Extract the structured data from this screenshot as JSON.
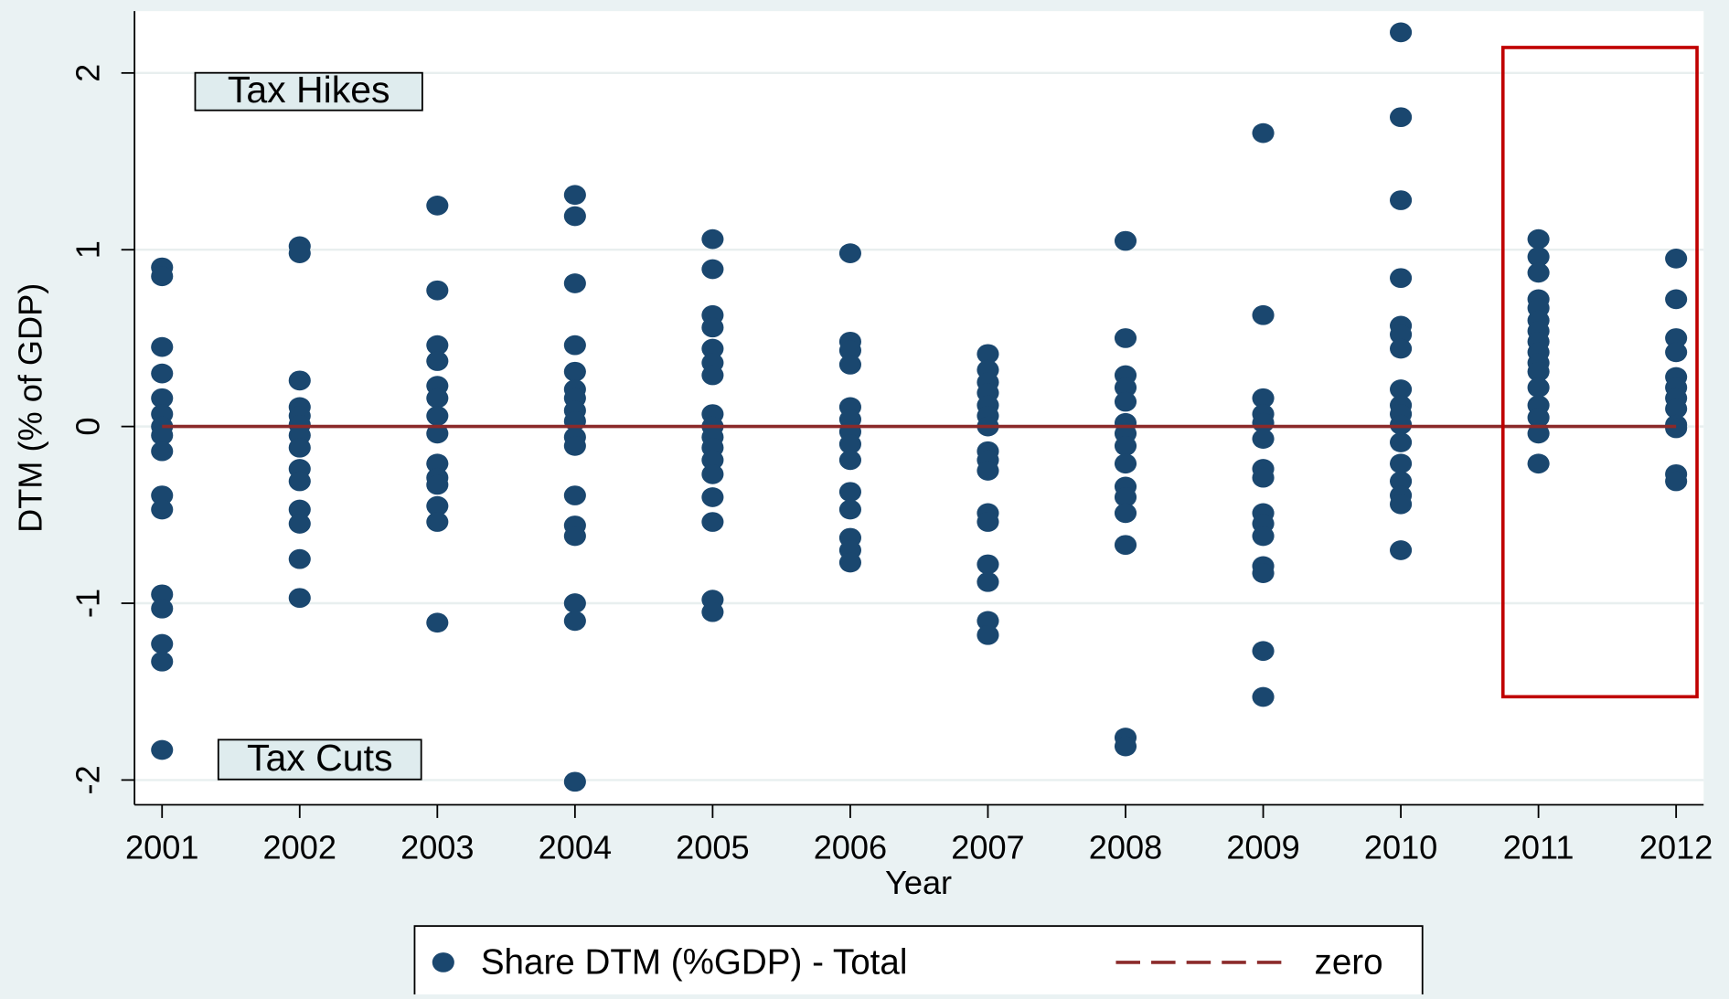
{
  "chart_data": {
    "type": "scatter",
    "x_label": "Year",
    "y_label": "DTM (% of GDP)",
    "annotations": [
      "Tax Hikes",
      "Tax Cuts"
    ],
    "xlim": [
      2000.8,
      2012.2
    ],
    "xticks": [
      2001,
      2002,
      2003,
      2004,
      2005,
      2006,
      2007,
      2008,
      2009,
      2010,
      2011,
      2012
    ],
    "ylim": [
      -2.14,
      2.35
    ],
    "yticks": [
      -2,
      -1,
      0,
      1,
      2
    ],
    "grid": true,
    "legend": "bottom",
    "series": [
      {
        "name": "Share DTM (%GDP) - Total",
        "color": "#1a476f",
        "type": "scatter",
        "x": [
          2001,
          2001,
          2001,
          2001,
          2001,
          2001,
          2001,
          2001,
          2001,
          2001,
          2001,
          2001,
          2001,
          2001,
          2001,
          2001,
          2002,
          2002,
          2002,
          2002,
          2002,
          2002,
          2002,
          2002,
          2002,
          2002,
          2002,
          2002,
          2002,
          2002,
          2003,
          2003,
          2003,
          2003,
          2003,
          2003,
          2003,
          2003,
          2003,
          2003,
          2003,
          2003,
          2003,
          2003,
          2004,
          2004,
          2004,
          2004,
          2004,
          2004,
          2004,
          2004,
          2004,
          2004,
          2004,
          2004,
          2004,
          2004,
          2004,
          2004,
          2004,
          2005,
          2005,
          2005,
          2005,
          2005,
          2005,
          2005,
          2005,
          2005,
          2005,
          2005,
          2005,
          2005,
          2005,
          2005,
          2005,
          2005,
          2006,
          2006,
          2006,
          2006,
          2006,
          2006,
          2006,
          2006,
          2006,
          2006,
          2006,
          2006,
          2006,
          2006,
          2007,
          2007,
          2007,
          2007,
          2007,
          2007,
          2007,
          2007,
          2007,
          2007,
          2007,
          2007,
          2007,
          2007,
          2007,
          2007,
          2008,
          2008,
          2008,
          2008,
          2008,
          2008,
          2008,
          2008,
          2008,
          2008,
          2008,
          2008,
          2008,
          2008,
          2008,
          2009,
          2009,
          2009,
          2009,
          2009,
          2009,
          2009,
          2009,
          2009,
          2009,
          2009,
          2009,
          2009,
          2009,
          2009,
          2010,
          2010,
          2010,
          2010,
          2010,
          2010,
          2010,
          2010,
          2010,
          2010,
          2010,
          2010,
          2010,
          2010,
          2010,
          2010,
          2010,
          2011,
          2011,
          2011,
          2011,
          2011,
          2011,
          2011,
          2011,
          2011,
          2011,
          2011,
          2011,
          2011,
          2011,
          2011,
          2011,
          2012,
          2012,
          2012,
          2012,
          2012,
          2012,
          2012,
          2012,
          2012,
          2012,
          2012,
          2012
        ],
        "values": [
          0.9,
          0.85,
          0.45,
          0.3,
          0.16,
          0.07,
          0,
          -0.05,
          -0.14,
          -0.39,
          -0.47,
          -0.95,
          -1.03,
          -1.23,
          -1.33,
          -1.83,
          1.02,
          0.98,
          0.26,
          0.11,
          0.06,
          0.01,
          -0.05,
          -0.12,
          -0.24,
          -0.31,
          -0.47,
          -0.55,
          -0.75,
          -0.97,
          1.25,
          0.77,
          0.46,
          0.37,
          0.23,
          0.16,
          0.06,
          -0.04,
          -0.21,
          -0.29,
          -0.33,
          -0.45,
          -0.54,
          -1.11,
          1.31,
          1.19,
          0.81,
          0.46,
          0.31,
          0.21,
          0.16,
          0.09,
          0.03,
          -0.06,
          -0.11,
          -0.39,
          -0.56,
          -0.62,
          -1.0,
          -1.1,
          -2.01,
          1.06,
          0.89,
          0.63,
          0.56,
          0.44,
          0.36,
          0.29,
          0.07,
          0,
          -0.06,
          -0.12,
          -0.19,
          -0.27,
          -0.4,
          -0.54,
          -0.98,
          -1.05,
          0.98,
          0.48,
          0.43,
          0.35,
          0.11,
          0.04,
          -0.03,
          -0.1,
          -0.19,
          -0.37,
          -0.47,
          -0.63,
          -0.7,
          -0.77,
          0.41,
          0.32,
          0.25,
          0.19,
          0.12,
          0.06,
          0,
          -0.14,
          -0.19,
          -0.25,
          -0.49,
          -0.54,
          -0.78,
          -0.88,
          -1.1,
          -1.18,
          1.05,
          0.5,
          0.29,
          0.22,
          0.14,
          0.02,
          -0.04,
          -0.11,
          -0.21,
          -0.34,
          -0.4,
          -0.49,
          -0.67,
          -1.76,
          -1.81,
          1.66,
          0.63,
          0.16,
          0.07,
          0.02,
          -0.07,
          -0.24,
          -0.29,
          -0.49,
          -0.55,
          -0.62,
          -0.79,
          -0.83,
          -1.27,
          -1.53,
          2.23,
          1.75,
          1.28,
          0.84,
          0.57,
          0.52,
          0.44,
          0.21,
          0.12,
          0.07,
          0.01,
          -0.09,
          -0.21,
          -0.31,
          -0.39,
          -0.44,
          -0.7,
          1.06,
          0.96,
          0.87,
          0.72,
          0.67,
          0.6,
          0.54,
          0.48,
          0.42,
          0.36,
          0.31,
          0.22,
          0.12,
          0.05,
          -0.04,
          -0.21,
          0.95,
          0.72,
          0.5,
          0.42,
          0.28,
          0.22,
          0.16,
          0.1,
          0.01,
          -0.01,
          -0.27,
          -0.31
        ]
      },
      {
        "name": "zero",
        "color": "#8b2a2a",
        "type": "line",
        "x": [
          2001,
          2012
        ],
        "values": [
          0,
          0
        ]
      }
    ]
  }
}
